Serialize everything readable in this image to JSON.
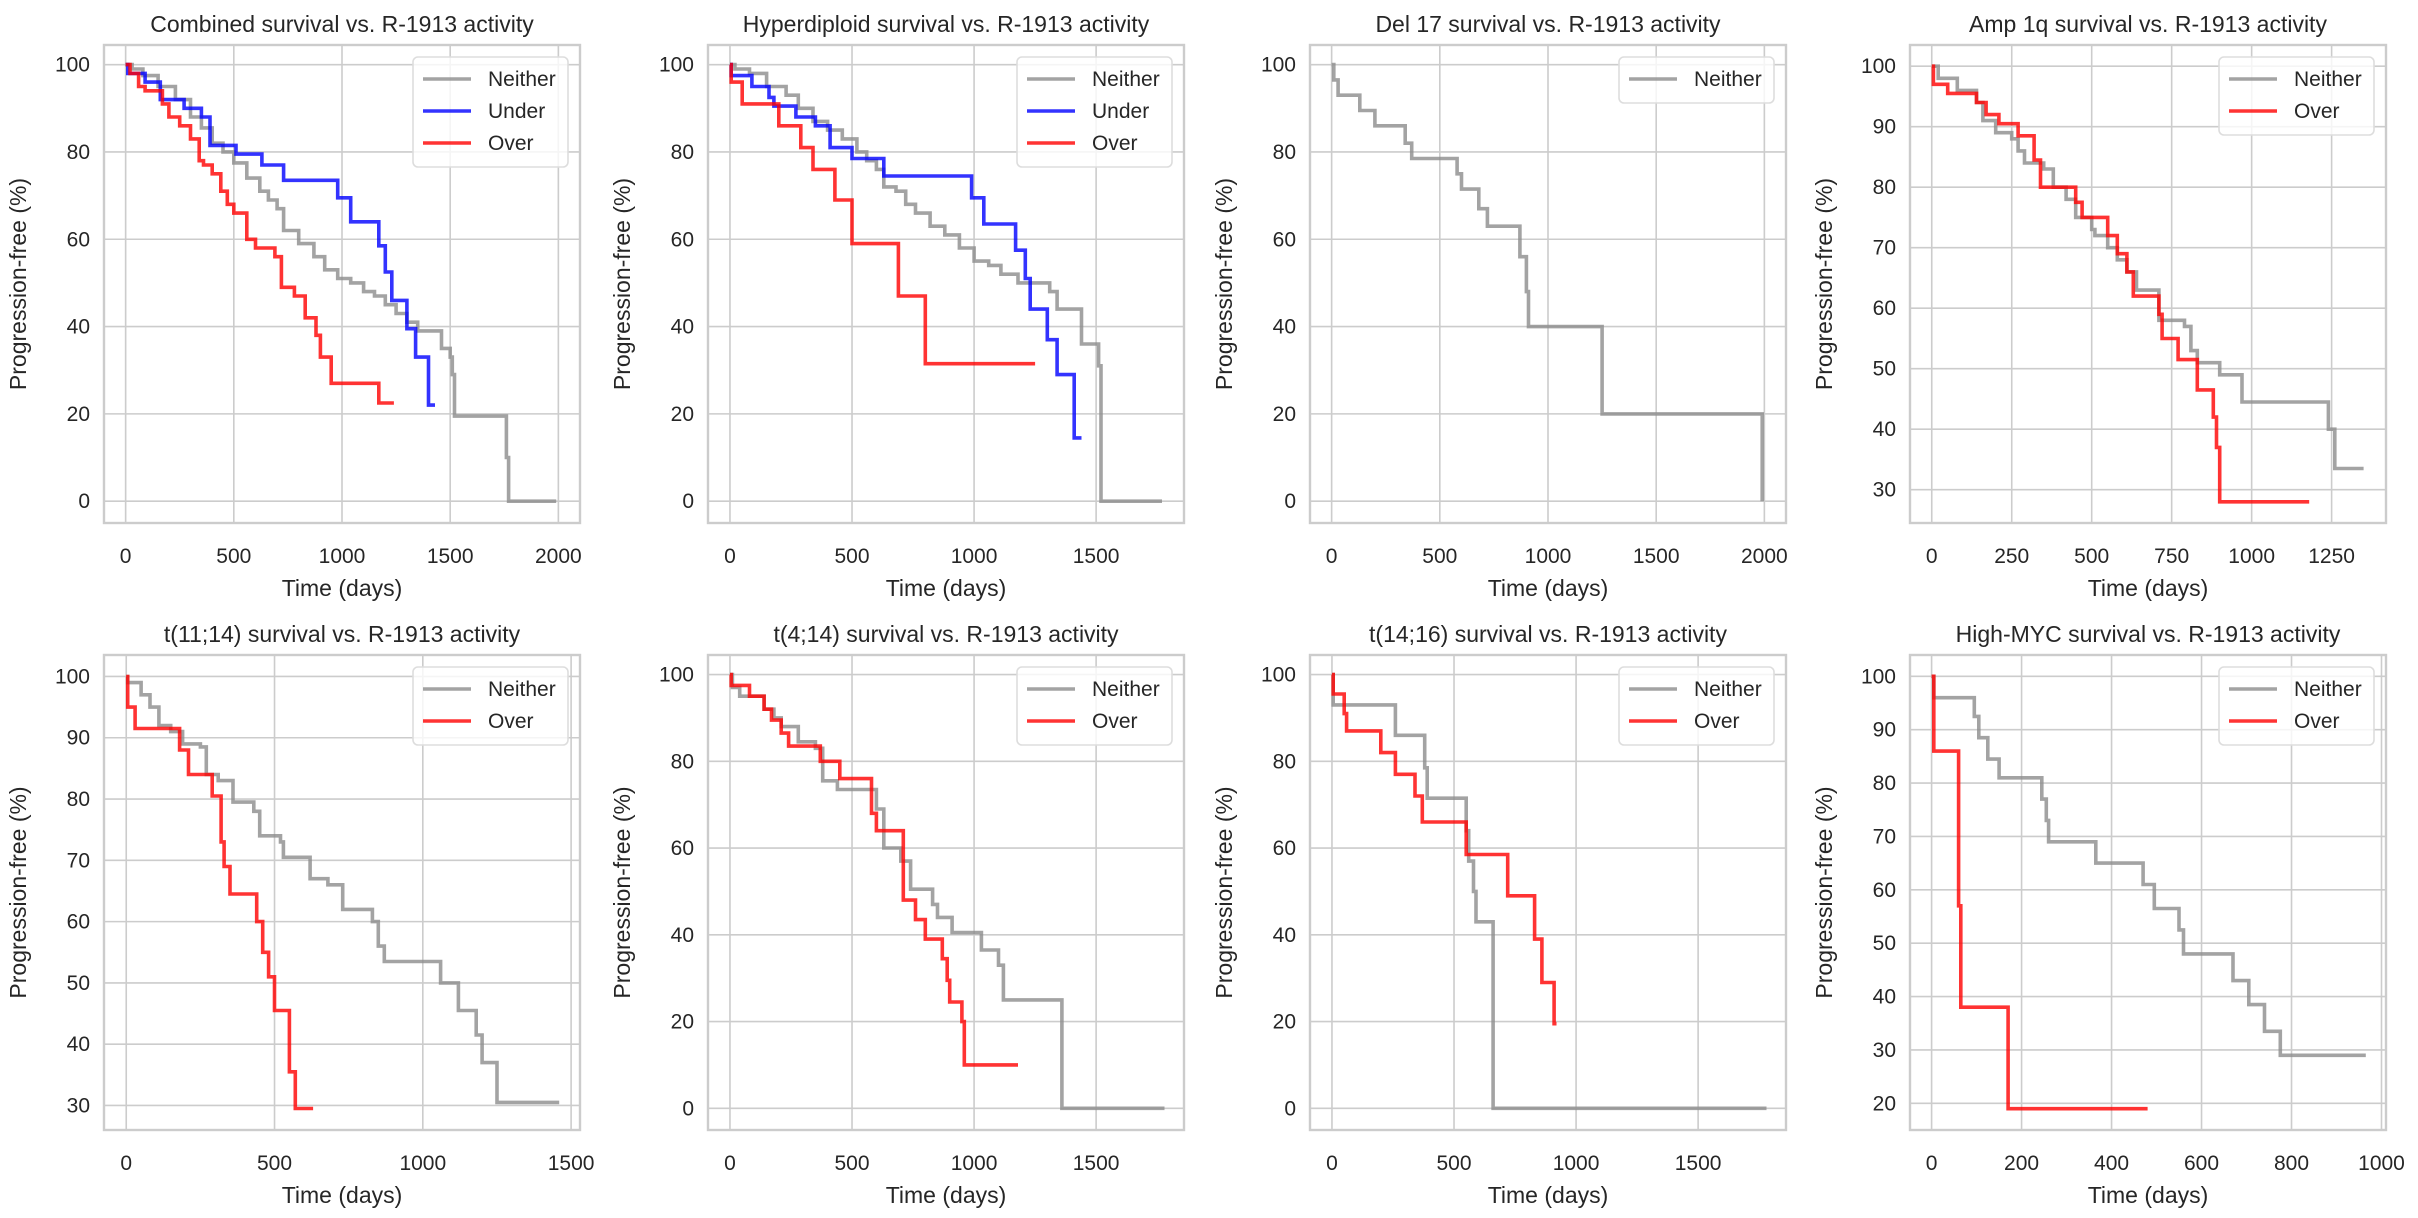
{
  "figure": {
    "colors": {
      "Neither": "#8c8c8c",
      "Under": "#0000ff",
      "Over": "#ff0000"
    },
    "grid": true
  },
  "chart_data": [
    {
      "type": "line",
      "step": true,
      "title": "Combined survival vs. R-1913 activity",
      "xlabel": "Time (days)",
      "ylabel": "Progression-free (%)",
      "xlim": [
        -100,
        2100
      ],
      "ylim": [
        -5,
        104.5
      ],
      "xticks": [
        0,
        500,
        1000,
        1500,
        2000
      ],
      "yticks": [
        0,
        20,
        40,
        60,
        80,
        100
      ],
      "legend": "top-right",
      "series": [
        {
          "name": "Neither",
          "x": [
            0,
            30,
            80,
            150,
            230,
            300,
            350,
            400,
            450,
            500,
            560,
            620,
            660,
            700,
            730,
            800,
            870,
            920,
            980,
            1040,
            1100,
            1150,
            1200,
            1250,
            1300,
            1350,
            1420,
            1460,
            1500,
            1510,
            1520,
            1760,
            1770,
            1990
          ],
          "y": [
            100,
            99,
            97.5,
            95,
            92,
            88,
            85.5,
            82,
            80,
            77.5,
            74,
            71,
            69,
            67,
            62,
            59,
            56,
            53,
            51,
            50,
            48,
            47,
            45,
            43,
            41,
            39,
            39,
            35,
            33,
            29,
            19.5,
            10,
            0,
            0
          ]
        },
        {
          "name": "Under",
          "x": [
            0,
            10,
            90,
            160,
            270,
            350,
            390,
            510,
            630,
            730,
            980,
            1040,
            1170,
            1200,
            1230,
            1300,
            1340,
            1400,
            1430
          ],
          "y": [
            100,
            98,
            96,
            92,
            90,
            88,
            81.5,
            79.5,
            77,
            73.5,
            69.5,
            64,
            58.5,
            52.5,
            46,
            39.5,
            33,
            22,
            22
          ]
        },
        {
          "name": "Over",
          "x": [
            0,
            20,
            60,
            90,
            170,
            200,
            250,
            300,
            340,
            360,
            400,
            440,
            470,
            500,
            560,
            600,
            690,
            720,
            780,
            830,
            880,
            900,
            950,
            1170,
            1240
          ],
          "y": [
            100,
            98,
            95,
            94,
            91,
            88,
            86,
            83,
            78,
            77,
            75,
            71,
            68,
            66,
            60,
            58,
            56,
            49,
            47,
            42,
            38,
            33,
            27,
            22.5,
            22.5
          ]
        }
      ]
    },
    {
      "type": "line",
      "step": true,
      "title": "Hyperdiploid survival vs. R-1913 activity",
      "xlabel": "Time (days)",
      "ylabel": "Progression-free (%)",
      "xlim": [
        -90,
        1860
      ],
      "ylim": [
        -5,
        104.5
      ],
      "xticks": [
        0,
        500,
        1000,
        1500
      ],
      "yticks": [
        0,
        20,
        40,
        60,
        80,
        100
      ],
      "legend": "top-right",
      "series": [
        {
          "name": "Neither",
          "x": [
            0,
            20,
            80,
            150,
            230,
            280,
            340,
            400,
            460,
            520,
            560,
            600,
            630,
            680,
            720,
            760,
            820,
            880,
            940,
            1000,
            1060,
            1110,
            1180,
            1310,
            1340,
            1420,
            1440,
            1500,
            1510,
            1520,
            1770
          ],
          "y": [
            100,
            99,
            98,
            95,
            93,
            90,
            87,
            85,
            83,
            80,
            78,
            76,
            72,
            71,
            68,
            66,
            63,
            61,
            58,
            55,
            54,
            52,
            50,
            48,
            44,
            44,
            36,
            36,
            31,
            0,
            0
          ]
        },
        {
          "name": "Under",
          "x": [
            0,
            5,
            90,
            160,
            180,
            270,
            350,
            410,
            500,
            630,
            990,
            1040,
            1170,
            1210,
            1230,
            1300,
            1340,
            1410,
            1440
          ],
          "y": [
            100,
            97.5,
            95,
            92.5,
            90.5,
            88,
            86,
            81,
            78.5,
            74.5,
            69.5,
            63.5,
            57.5,
            51,
            44,
            37,
            29,
            14.5,
            14.5
          ]
        },
        {
          "name": "Over",
          "x": [
            0,
            5,
            50,
            200,
            290,
            340,
            430,
            500,
            690,
            800,
            1250
          ],
          "y": [
            100,
            96,
            91,
            86,
            81,
            76,
            69,
            59,
            47,
            31.5,
            31.5
          ]
        }
      ]
    },
    {
      "type": "line",
      "step": true,
      "title": "Del 17 survival vs. R-1913 activity",
      "xlabel": "Time (days)",
      "ylabel": "Progression-free (%)",
      "xlim": [
        -100,
        2100
      ],
      "ylim": [
        -5,
        104.5
      ],
      "xticks": [
        0,
        500,
        1000,
        1500,
        2000
      ],
      "yticks": [
        0,
        20,
        40,
        60,
        80,
        100
      ],
      "legend": "top-right",
      "series": [
        {
          "name": "Neither",
          "x": [
            0,
            10,
            30,
            130,
            200,
            340,
            370,
            580,
            600,
            680,
            720,
            870,
            900,
            910,
            1250,
            1990
          ],
          "y": [
            100,
            96.5,
            93,
            89.5,
            86,
            82,
            78.5,
            75,
            71.5,
            67,
            63,
            56,
            48,
            40,
            20,
            0
          ]
        }
      ]
    },
    {
      "type": "line",
      "step": true,
      "title": "Amp 1q survival vs. R-1913 activity",
      "xlabel": "Time (days)",
      "ylabel": "Progression-free (%)",
      "xlim": [
        -68,
        1420
      ],
      "ylim": [
        24.5,
        103.5
      ],
      "xticks": [
        0,
        250,
        500,
        750,
        1000,
        1250
      ],
      "yticks": [
        30,
        40,
        50,
        60,
        70,
        80,
        90,
        100
      ],
      "legend": "top-right",
      "series": [
        {
          "name": "Neither",
          "x": [
            0,
            20,
            80,
            140,
            160,
            200,
            250,
            270,
            290,
            350,
            380,
            420,
            450,
            500,
            510,
            550,
            580,
            610,
            640,
            710,
            790,
            810,
            830,
            900,
            970,
            1240,
            1260,
            1350
          ],
          "y": [
            100,
            98,
            96,
            94,
            91,
            89,
            88,
            86,
            84,
            83,
            80,
            78,
            75,
            73,
            72,
            70,
            68,
            66,
            63,
            58,
            57,
            53,
            51,
            49,
            44.5,
            40,
            33.5,
            33.5
          ]
        },
        {
          "name": "Over",
          "x": [
            0,
            5,
            50,
            140,
            170,
            210,
            270,
            320,
            340,
            450,
            470,
            550,
            580,
            610,
            630,
            710,
            720,
            770,
            830,
            880,
            890,
            900,
            1180
          ],
          "y": [
            100,
            97,
            95.5,
            94,
            92,
            90.5,
            88.5,
            84.5,
            80,
            77.5,
            75,
            72,
            69,
            66,
            62,
            59,
            55,
            51.5,
            46.5,
            42,
            37,
            28,
            28
          ]
        }
      ]
    },
    {
      "type": "line",
      "step": true,
      "title": "t(11;14) survival vs. R-1913 activity",
      "xlabel": "Time (days)",
      "ylabel": "Progression-free (%)",
      "xlim": [
        -75,
        1530
      ],
      "ylim": [
        26,
        103.5
      ],
      "xticks": [
        0,
        500,
        1000,
        1500
      ],
      "yticks": [
        30,
        40,
        50,
        60,
        70,
        80,
        90,
        100
      ],
      "legend": "top-right",
      "series": [
        {
          "name": "Neither",
          "x": [
            0,
            5,
            50,
            80,
            110,
            150,
            190,
            250,
            270,
            310,
            360,
            430,
            450,
            520,
            530,
            620,
            680,
            730,
            830,
            850,
            870,
            1060,
            1120,
            1180,
            1200,
            1250,
            1460
          ],
          "y": [
            100,
            99,
            97,
            95,
            92,
            91,
            89,
            88.5,
            84,
            83,
            79.5,
            78,
            74,
            73,
            70.5,
            67,
            66,
            62,
            60,
            56,
            53.5,
            50,
            45.5,
            41.5,
            37,
            30.5,
            30.5
          ]
        },
        {
          "name": "Over",
          "x": [
            0,
            5,
            30,
            180,
            210,
            290,
            320,
            330,
            350,
            440,
            460,
            480,
            500,
            550,
            570,
            630
          ],
          "y": [
            100,
            95,
            91.5,
            88,
            84,
            80.5,
            73,
            69,
            64.5,
            60,
            55,
            51,
            45.5,
            35.5,
            29.5,
            29.5
          ]
        }
      ]
    },
    {
      "type": "line",
      "step": true,
      "title": "t(4;14) survival vs. R-1913 activity",
      "xlabel": "Time (days)",
      "ylabel": "Progression-free (%)",
      "xlim": [
        -90,
        1860
      ],
      "ylim": [
        -5,
        104.5
      ],
      "xticks": [
        0,
        500,
        1000,
        1500
      ],
      "yticks": [
        0,
        20,
        40,
        60,
        80,
        100
      ],
      "legend": "top-right",
      "series": [
        {
          "name": "Neither",
          "x": [
            0,
            10,
            40,
            140,
            180,
            210,
            280,
            350,
            380,
            440,
            600,
            630,
            700,
            740,
            830,
            850,
            910,
            1030,
            1100,
            1120,
            1360,
            1780
          ],
          "y": [
            100,
            97,
            95,
            92,
            90,
            88,
            84.5,
            83,
            75.5,
            73.5,
            69,
            60,
            57,
            50.5,
            47,
            44,
            40.5,
            36.5,
            33,
            25,
            0,
            0
          ]
        },
        {
          "name": "Over",
          "x": [
            0,
            5,
            80,
            140,
            170,
            210,
            240,
            370,
            450,
            580,
            600,
            710,
            760,
            800,
            870,
            890,
            900,
            950,
            960,
            1180
          ],
          "y": [
            100,
            97.5,
            95,
            92,
            89.5,
            86.5,
            83.5,
            80,
            76,
            68,
            64,
            48,
            43.5,
            39,
            34.5,
            29.5,
            24.5,
            20,
            10,
            10
          ]
        }
      ]
    },
    {
      "type": "line",
      "step": true,
      "title": "t(14;16) survival vs. R-1913 activity",
      "xlabel": "Time (days)",
      "ylabel": "Progression-free (%)",
      "xlim": [
        -90,
        1860
      ],
      "ylim": [
        -5,
        104.5
      ],
      "xticks": [
        0,
        500,
        1000,
        1500
      ],
      "yticks": [
        0,
        20,
        40,
        60,
        80,
        100
      ],
      "legend": "top-right",
      "series": [
        {
          "name": "Neither",
          "x": [
            0,
            5,
            260,
            380,
            390,
            550,
            560,
            580,
            590,
            660,
            1780
          ],
          "y": [
            100,
            93,
            86,
            78.5,
            71.5,
            64,
            57,
            50,
            43,
            0,
            0
          ]
        },
        {
          "name": "Over",
          "x": [
            0,
            5,
            50,
            60,
            200,
            260,
            340,
            370,
            550,
            720,
            830,
            860,
            910,
            920
          ],
          "y": [
            100,
            95.5,
            91,
            87,
            82,
            77,
            72,
            66,
            58.5,
            49,
            39,
            29,
            19.5,
            19.5
          ]
        }
      ]
    },
    {
      "type": "line",
      "step": true,
      "title": "High-MYC survival vs. R-1913 activity",
      "xlabel": "Time (days)",
      "ylabel": "Progression-free (%)",
      "xlim": [
        -48,
        1010
      ],
      "ylim": [
        15,
        104
      ],
      "xticks": [
        0,
        200,
        400,
        600,
        800,
        1000
      ],
      "yticks": [
        20,
        30,
        40,
        50,
        60,
        70,
        80,
        90,
        100
      ],
      "legend": "top-right",
      "series": [
        {
          "name": "Neither",
          "x": [
            0,
            5,
            95,
            105,
            125,
            150,
            245,
            255,
            260,
            365,
            470,
            495,
            550,
            560,
            670,
            705,
            740,
            775,
            965
          ],
          "y": [
            100,
            96,
            92.5,
            88.5,
            84.5,
            81,
            77,
            73,
            69,
            65,
            61,
            56.5,
            52.5,
            48,
            43,
            38.5,
            33.5,
            29,
            29
          ]
        },
        {
          "name": "Over",
          "x": [
            0,
            5,
            60,
            65,
            170,
            480
          ],
          "y": [
            100,
            86,
            57,
            38,
            19,
            19
          ]
        }
      ]
    }
  ]
}
